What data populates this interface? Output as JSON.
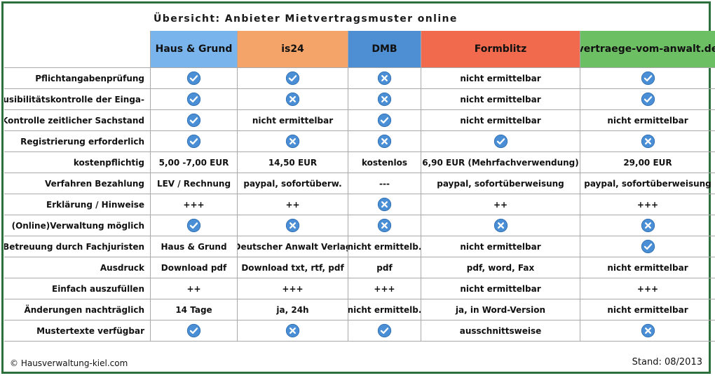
{
  "title": "Übersicht: Anbieter Mietvertragsmuster online",
  "providers": [
    {
      "name": "Haus & Grund",
      "color": "#79b4ec"
    },
    {
      "name": "is24",
      "color": "#f5a469"
    },
    {
      "name": "DMB",
      "color": "#4e8ed3"
    },
    {
      "name": "Formblitz",
      "color": "#f26a4d"
    },
    {
      "name": "vertraege-vom-anwalt.de",
      "color": "#6dbf63"
    }
  ],
  "rows": [
    {
      "label": "Pflichtangabenprüfung",
      "cells": [
        "check",
        "check",
        "cross",
        "nicht ermittelbar",
        "check"
      ]
    },
    {
      "label": "Plausibilitätskontrolle der Einga-",
      "cells": [
        "check",
        "cross",
        "cross",
        "nicht ermittelbar",
        "check"
      ]
    },
    {
      "label": "Kontrolle zeitlicher Sachstand",
      "cells": [
        "check",
        "nicht ermittelbar",
        "check",
        "nicht ermittelbar",
        "nicht ermittelbar"
      ]
    },
    {
      "label": "Registrierung erforderlich",
      "cells": [
        "check",
        "cross",
        "cross",
        "check",
        "cross"
      ]
    },
    {
      "label": "kostenpflichtig",
      "cells": [
        "5,00 -7,00 EUR",
        "14,50 EUR",
        "kostenlos",
        "6,90 EUR (Mehrfachverwendung)",
        "29,00 EUR"
      ]
    },
    {
      "label": "Verfahren Bezahlung",
      "cells": [
        "LEV / Rechnung",
        "paypal, sofortüberw.",
        "---",
        "paypal, sofortüberweisung",
        "paypal, sofortüberweisung"
      ]
    },
    {
      "label": "Erklärung / Hinweise",
      "cells": [
        "+++",
        "++",
        "cross",
        "++",
        "+++"
      ]
    },
    {
      "label": "(Online)Verwaltung möglich",
      "cells": [
        "check",
        "cross",
        "cross",
        "cross",
        "cross"
      ]
    },
    {
      "label": "Betreuung durch Fachjuristen",
      "cells": [
        "Haus & Grund",
        "Deutscher Anwalt Verlag",
        "nicht ermittelb.",
        "nicht ermittelbar",
        "check"
      ]
    },
    {
      "label": "Ausdruck",
      "cells": [
        "Download pdf",
        "Download txt, rtf, pdf",
        "pdf",
        "pdf, word, Fax",
        "nicht ermittelbar"
      ]
    },
    {
      "label": "Einfach auszufüllen",
      "cells": [
        "++",
        "+++",
        "+++",
        "nicht ermittelbar",
        "+++"
      ]
    },
    {
      "label": "Änderungen nachträglich",
      "cells": [
        "14 Tage",
        "ja, 24h",
        "nicht ermittelb.",
        "ja, in Word-Version",
        "nicht ermittelbar"
      ]
    },
    {
      "label": "Mustertexte verfügbar",
      "cells": [
        "check",
        "cross",
        "check",
        "ausschnittsweise",
        "cross"
      ]
    }
  ],
  "icons": {
    "check": "check-circle-icon",
    "cross": "cross-circle-icon",
    "icon_color": "#4a8fd6"
  },
  "footer": {
    "left": "© Hausverwaltung-kiel.com",
    "right": "Stand: 08/2013"
  }
}
